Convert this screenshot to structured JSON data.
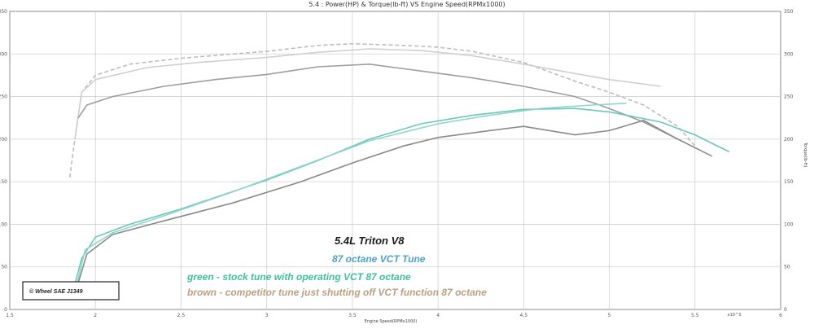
{
  "chart_data": {
    "type": "line",
    "title": "5.4 : Power(HP) & Torque(lb-ft) VS Engine Speed(RPMx1000)",
    "xlabel": "Engine Speed(RPMx1000)",
    "ylabel_right": "Torque(lb-ft)",
    "x_unit_label": "x10^3",
    "xlim": [
      1.5,
      6.0
    ],
    "ylim_left": [
      0,
      350
    ],
    "ylim_right": [
      0,
      350
    ],
    "x_ticks": [
      "1.5",
      "2",
      "2.5",
      "3",
      "3.5",
      "4",
      "4.5",
      "5",
      "5.5",
      "6"
    ],
    "y_ticks_left": [
      "0",
      "50",
      "100",
      "150",
      "200",
      "250",
      "300",
      "350"
    ],
    "y_ticks_right": [
      "0",
      "50",
      "100",
      "150",
      "200",
      "250",
      "300",
      "350"
    ],
    "grid": true,
    "series": [
      {
        "kind": "torque",
        "color": "#bdbdbd",
        "dash": "5 3",
        "points": [
          [
            1.85,
            155
          ],
          [
            1.88,
            200
          ],
          [
            1.92,
            255
          ],
          [
            2.0,
            275
          ],
          [
            2.2,
            288
          ],
          [
            2.5,
            295
          ],
          [
            2.8,
            300
          ],
          [
            3.0,
            303
          ],
          [
            3.3,
            310
          ],
          [
            3.5,
            312
          ],
          [
            3.8,
            310
          ],
          [
            4.0,
            308
          ],
          [
            4.2,
            303
          ],
          [
            4.5,
            290
          ],
          [
            4.8,
            268
          ],
          [
            5.0,
            255
          ],
          [
            5.2,
            240
          ],
          [
            5.4,
            215
          ],
          [
            5.5,
            192
          ]
        ]
      },
      {
        "kind": "torque",
        "color": "#cfcfcf",
        "dash": "",
        "points": [
          [
            1.88,
            200
          ],
          [
            1.92,
            255
          ],
          [
            2.0,
            270
          ],
          [
            2.3,
            284
          ],
          [
            2.6,
            290
          ],
          [
            3.0,
            296
          ],
          [
            3.3,
            302
          ],
          [
            3.6,
            306
          ],
          [
            3.9,
            304
          ],
          [
            4.2,
            298
          ],
          [
            4.5,
            288
          ],
          [
            4.8,
            277
          ],
          [
            5.0,
            270
          ],
          [
            5.3,
            262
          ]
        ]
      },
      {
        "kind": "torque",
        "color": "#9e9e9e",
        "dash": "",
        "points": [
          [
            1.9,
            225
          ],
          [
            1.95,
            240
          ],
          [
            2.1,
            250
          ],
          [
            2.4,
            262
          ],
          [
            2.7,
            270
          ],
          [
            3.0,
            276
          ],
          [
            3.3,
            285
          ],
          [
            3.6,
            288
          ],
          [
            3.9,
            280
          ],
          [
            4.2,
            272
          ],
          [
            4.5,
            262
          ],
          [
            4.8,
            250
          ],
          [
            5.0,
            236
          ],
          [
            5.2,
            220
          ],
          [
            5.4,
            200
          ]
        ]
      },
      {
        "kind": "power",
        "color": "#6cc7bb",
        "dash": "",
        "points": [
          [
            1.86,
            15
          ],
          [
            1.92,
            60
          ],
          [
            2.0,
            85
          ],
          [
            2.2,
            100
          ],
          [
            2.5,
            118
          ],
          [
            3.0,
            152
          ],
          [
            3.3,
            175
          ],
          [
            3.6,
            200
          ],
          [
            3.9,
            218
          ],
          [
            4.2,
            228
          ],
          [
            4.5,
            235
          ],
          [
            4.8,
            236
          ],
          [
            5.0,
            232
          ],
          [
            5.3,
            220
          ],
          [
            5.5,
            205
          ],
          [
            5.7,
            185
          ]
        ]
      },
      {
        "kind": "power",
        "color": "#8fd6cc",
        "dash": "",
        "points": [
          [
            1.88,
            20
          ],
          [
            1.94,
            70
          ],
          [
            2.1,
            90
          ],
          [
            2.4,
            110
          ],
          [
            2.8,
            138
          ],
          [
            3.2,
            168
          ],
          [
            3.6,
            198
          ],
          [
            4.0,
            218
          ],
          [
            4.3,
            228
          ],
          [
            4.6,
            236
          ],
          [
            4.9,
            240
          ],
          [
            5.1,
            242
          ]
        ]
      },
      {
        "kind": "power",
        "color": "#8a8a8a",
        "dash": "",
        "points": [
          [
            1.88,
            18
          ],
          [
            1.95,
            65
          ],
          [
            2.1,
            88
          ],
          [
            2.4,
            104
          ],
          [
            2.8,
            125
          ],
          [
            3.2,
            150
          ],
          [
            3.5,
            172
          ],
          [
            3.8,
            192
          ],
          [
            4.0,
            202
          ],
          [
            4.3,
            210
          ],
          [
            4.5,
            215
          ],
          [
            4.8,
            205
          ],
          [
            5.0,
            210
          ],
          [
            5.2,
            222
          ],
          [
            5.4,
            200
          ],
          [
            5.6,
            180
          ]
        ]
      }
    ]
  },
  "annotations": {
    "line1": "5.4L Triton  V8",
    "line2": "87 octane VCT Tune",
    "line3": "green - stock tune with operating VCT 87 octane",
    "line4": "brown - competitor tune just shutting off VCT function 87 octane"
  },
  "badge": "© Wheel SAE J1349",
  "colors": {
    "line1": "#1a1a1a",
    "line2": "#4aa3c7",
    "line3": "#3fbf9c",
    "line4": "#b9a083"
  }
}
